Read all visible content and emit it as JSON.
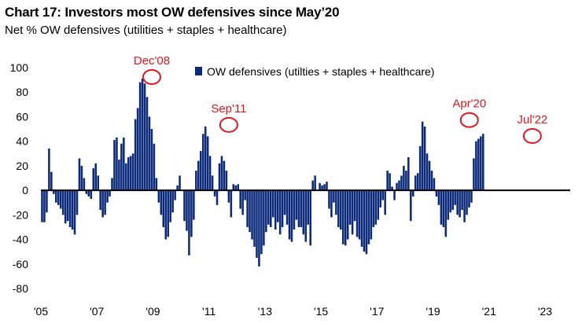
{
  "header": {
    "title": "Chart 17: Investors most OW defensives since May’20",
    "subtitle": "Net % OW defensives (utilities + staples + healthcare)"
  },
  "colors": {
    "bar": "#0b2a7c",
    "annotation": "#e8151b",
    "axis": "#000000"
  },
  "chart_data": {
    "type": "bar",
    "title": "Chart 17: Investors most OW defensives since May’20",
    "subtitle": "Net % OW defensives (utilities + staples + healthcare)",
    "xlabel": "",
    "ylabel": "",
    "ylim": [
      -80,
      100
    ],
    "yticks": [
      -80,
      -60,
      -40,
      -20,
      0,
      20,
      40,
      60,
      80,
      100
    ],
    "xlim": [
      2005.0,
      2023.9
    ],
    "xtick_labels": [
      "'05",
      "'07",
      "'09",
      "'11",
      "'13",
      "'15",
      "'17",
      "'19",
      "'21",
      "'23"
    ],
    "xtick_years": [
      2005,
      2007,
      2009,
      2011,
      2013,
      2015,
      2017,
      2019,
      2021,
      2023
    ],
    "grid": false,
    "legend": {
      "label": "OW defensives (utilties + staples + healthcare)",
      "position": "top-center"
    },
    "series": [
      {
        "name": "OW defensives (utilties + staples + healthcare)",
        "start": 2005.0,
        "step_years": 0.08333,
        "values": [
          -26,
          -26,
          -18,
          34,
          15,
          -3,
          -10,
          -12,
          -15,
          -20,
          -27,
          -25,
          -30,
          -32,
          -36,
          -20,
          26,
          20,
          10,
          -3,
          -5,
          -7,
          18,
          22,
          12,
          -16,
          -22,
          -20,
          -10,
          -5,
          10,
          41,
          43,
          25,
          38,
          43,
          22,
          27,
          28,
          30,
          58,
          67,
          88,
          91,
          87,
          76,
          60,
          50,
          38,
          10,
          -10,
          -20,
          -30,
          -40,
          -38,
          -26,
          -18,
          -8,
          4,
          12,
          0,
          -25,
          -33,
          -53,
          -38,
          -24,
          16,
          24,
          32,
          46,
          52,
          44,
          28,
          12,
          -5,
          -12,
          22,
          28,
          24,
          16,
          -10,
          -22,
          5,
          4,
          5,
          -15,
          -20,
          -8,
          -30,
          -34,
          -40,
          -46,
          -55,
          -62,
          -52,
          -45,
          -34,
          -28,
          -30,
          -22,
          -32,
          -26,
          -36,
          -30,
          -20,
          -28,
          -40,
          -42,
          -32,
          -24,
          -30,
          -30,
          -36,
          -42,
          -28,
          -45,
          8,
          12,
          0,
          6,
          4,
          5,
          7,
          -15,
          -22,
          -10,
          -20,
          -30,
          -32,
          -44,
          -45,
          -40,
          -28,
          -36,
          -25,
          -38,
          -40,
          -46,
          -50,
          -52,
          -44,
          -40,
          -30,
          -28,
          -24,
          -14,
          -8,
          -20,
          16,
          14,
          3,
          -8,
          6,
          8,
          12,
          20,
          16,
          27,
          -25,
          -5,
          12,
          14,
          36,
          56,
          52,
          30,
          24,
          16,
          10,
          -5,
          -12,
          -28,
          -30,
          -38,
          -24,
          -18,
          -16,
          -12,
          -20,
          -22,
          -16,
          -26,
          -20,
          -14,
          -10,
          26,
          40,
          42,
          44,
          46
        ]
      }
    ],
    "annotations": [
      {
        "label": "Dec'08",
        "x": 2008.96,
        "y": 91
      },
      {
        "label": "Sep'11",
        "x": 2011.71,
        "y": 52
      },
      {
        "label": "Apr'20",
        "x": 2020.3,
        "y": 56
      },
      {
        "label": "Jul'22",
        "x": 2022.55,
        "y": 43
      }
    ]
  }
}
